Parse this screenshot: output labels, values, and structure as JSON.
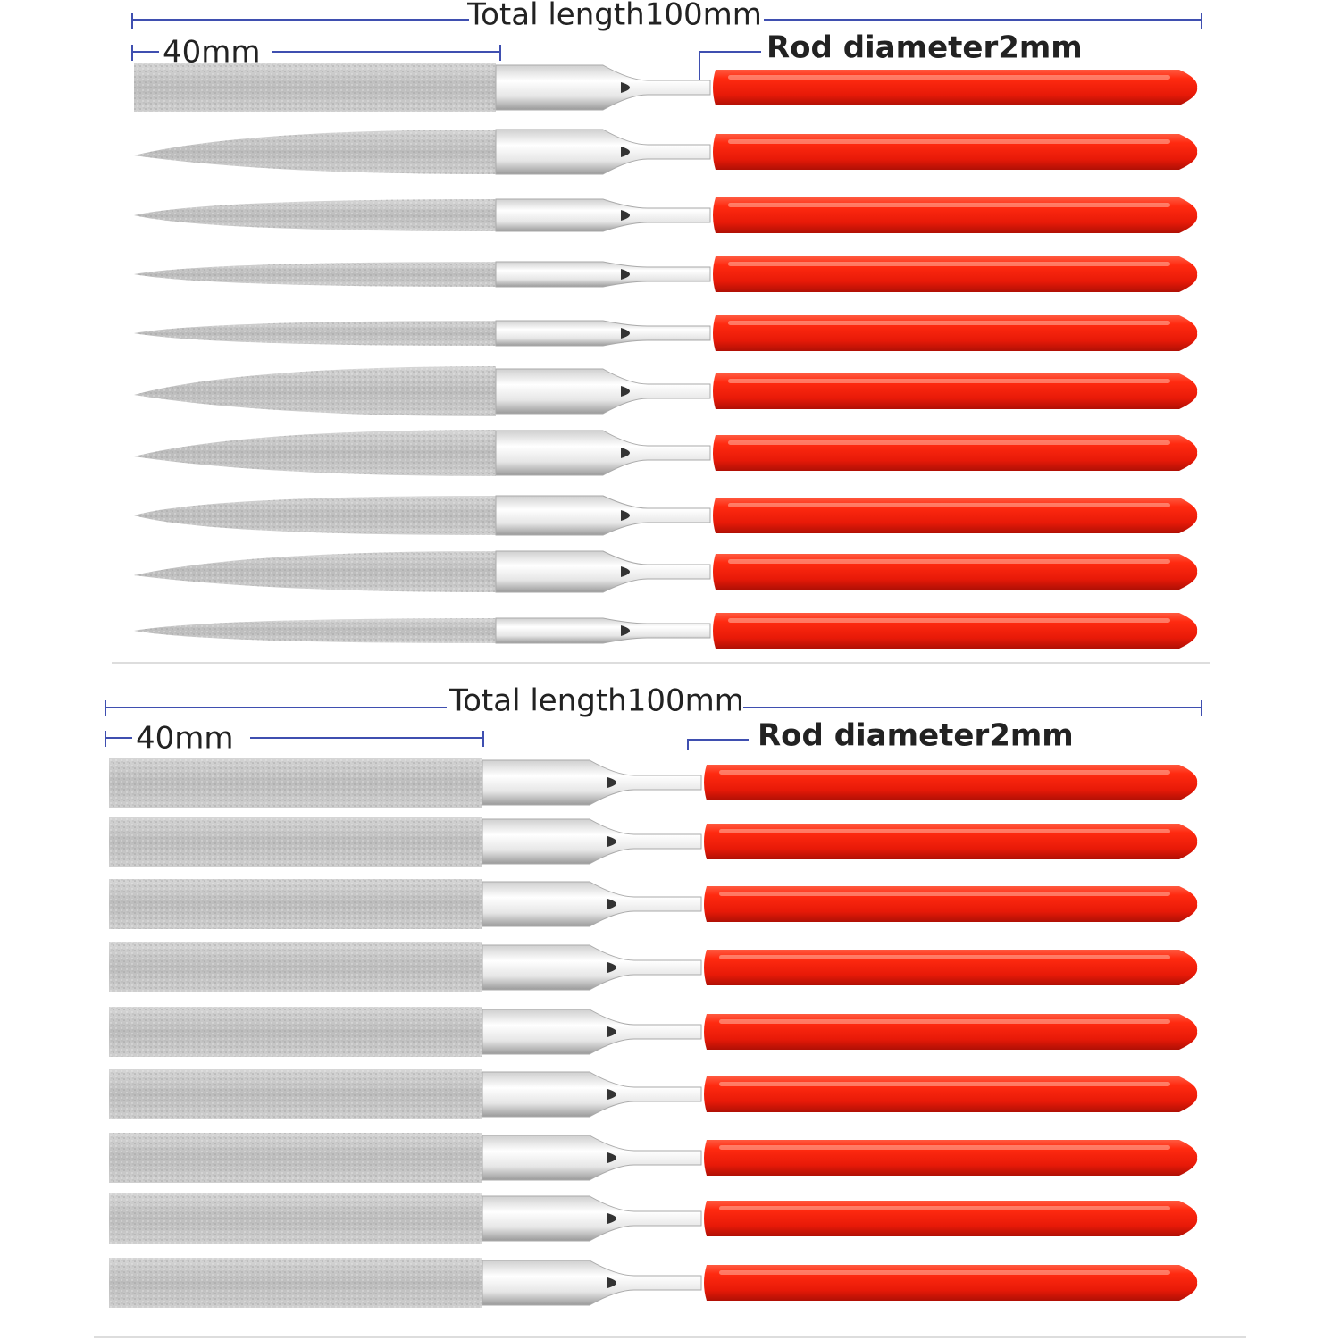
{
  "panels": [
    {
      "total_length": "Total length100mm",
      "blade_length": "40mm",
      "rod_diameter": "Rod diameter2mm"
    },
    {
      "total_length": "Total length100mm",
      "blade_length": "40mm",
      "rod_diameter": "Rod diameter2mm"
    }
  ]
}
